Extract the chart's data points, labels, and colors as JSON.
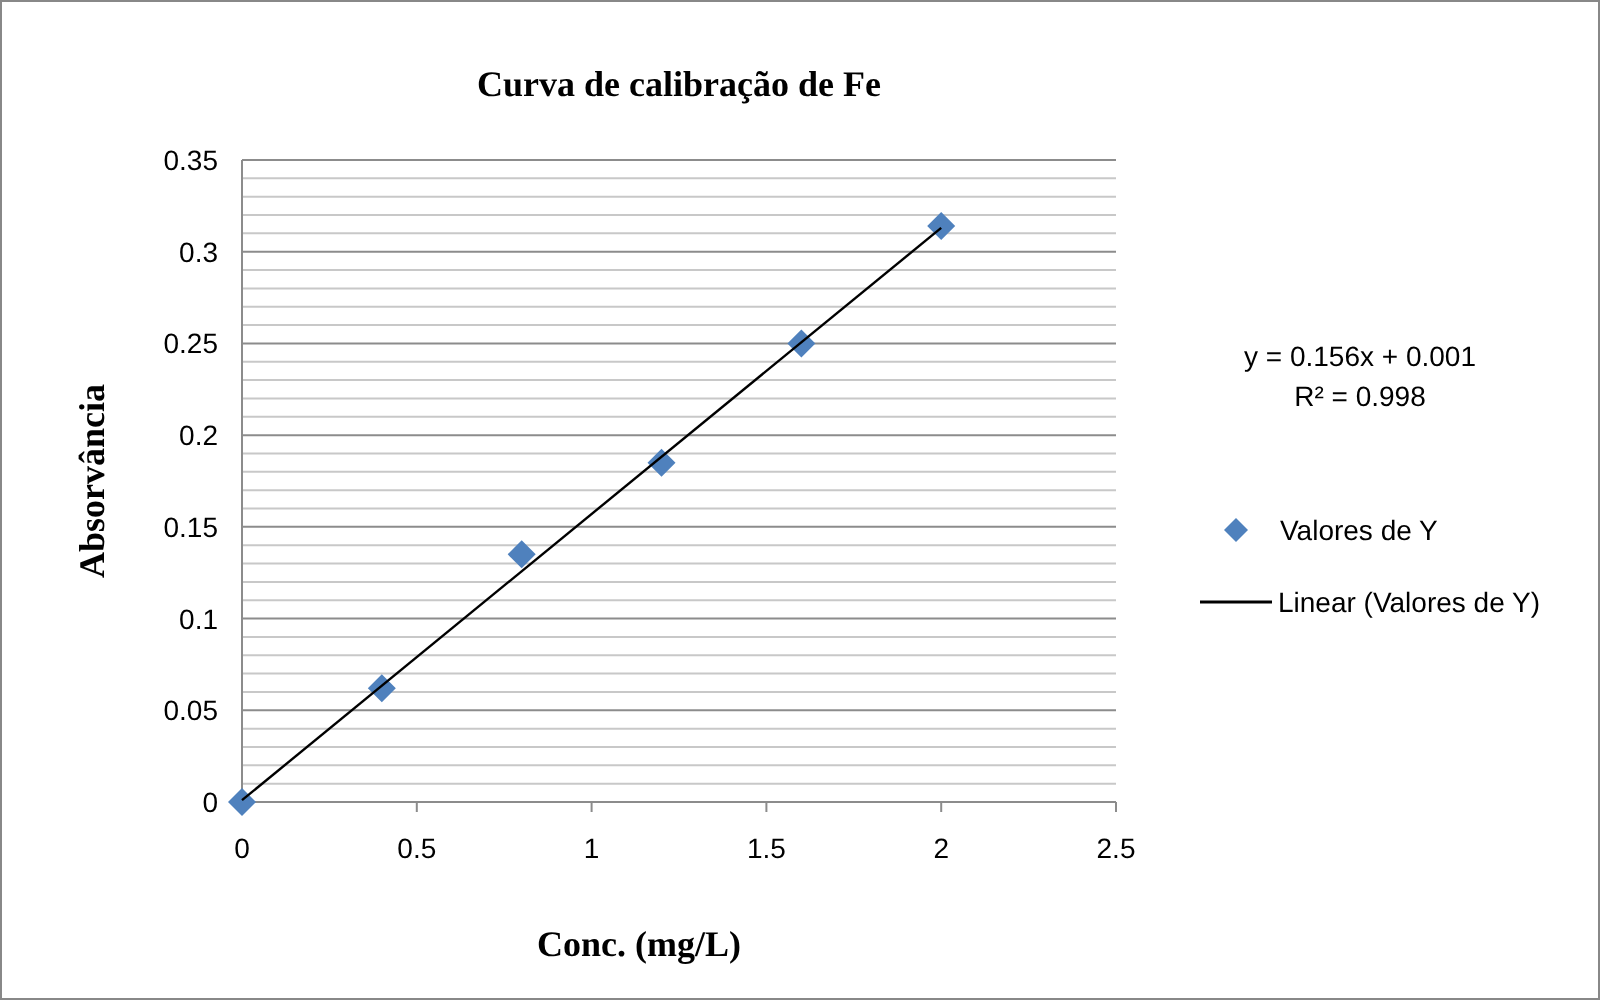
{
  "chart_data": {
    "type": "scatter",
    "title": "Curva de calibração de Fe",
    "xlabel": "Conc. (mg/L)",
    "ylabel": "Absorvância",
    "xlim": [
      0,
      2.5
    ],
    "xticks": [
      0,
      0.5,
      1,
      1.5,
      2,
      2.5
    ],
    "ylim": [
      0,
      0.35
    ],
    "yticks": [
      0,
      0.05,
      0.1,
      0.15,
      0.2,
      0.25,
      0.3,
      0.35
    ],
    "grid": "y",
    "legend": "right",
    "marker": "diamond",
    "series": [
      {
        "name": "Valores de Y",
        "color": "#4f81bd",
        "x": [
          0,
          0.4,
          0.8,
          1.2,
          1.6,
          2.0
        ],
        "values": [
          0,
          0.062,
          0.135,
          0.185,
          0.25,
          0.314
        ]
      },
      {
        "name": "Linear (Valores de Y)",
        "type": "line",
        "color": "#000000",
        "marker": "none",
        "line_style": "solid",
        "x": [
          0,
          2.0
        ],
        "values": [
          0.001,
          0.313
        ]
      }
    ],
    "annotations": [
      "y = 0.156x + 0.001",
      "R² = 0.998"
    ]
  }
}
